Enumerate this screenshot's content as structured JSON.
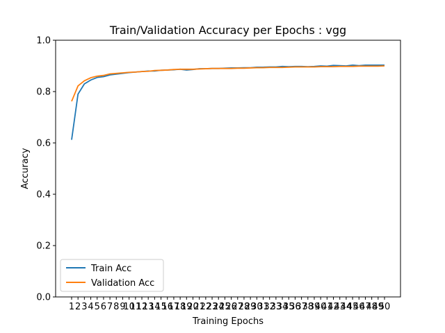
{
  "chart_data": {
    "type": "line",
    "title": "Train/Validation Accuracy per Epochs : vgg",
    "xlabel": "Training Epochs",
    "ylabel": "Accuracy",
    "ylim": [
      0,
      1.0
    ],
    "yticks": [
      "0.0",
      "0.2",
      "0.4",
      "0.6",
      "0.8",
      "1.0"
    ],
    "x": [
      "1",
      "2",
      "3",
      "4",
      "5",
      "6",
      "7",
      "8",
      "9",
      "10",
      "11",
      "12",
      "13",
      "14",
      "15",
      "16",
      "17",
      "18",
      "19",
      "20",
      "21",
      "22",
      "23",
      "24",
      "25",
      "26",
      "27",
      "28",
      "29",
      "30",
      "31",
      "32",
      "33",
      "34",
      "35",
      "36",
      "37",
      "38",
      "39",
      "40",
      "41",
      "42",
      "43",
      "44",
      "45",
      "46",
      "47",
      "48",
      "49",
      "50"
    ],
    "grid": false,
    "legend_position": "lower-left",
    "series": [
      {
        "name": "Train Acc",
        "color": "#1f77b4",
        "values": [
          0.612,
          0.79,
          0.83,
          0.845,
          0.855,
          0.858,
          0.865,
          0.868,
          0.871,
          0.874,
          0.876,
          0.878,
          0.88,
          0.88,
          0.883,
          0.884,
          0.885,
          0.887,
          0.884,
          0.886,
          0.889,
          0.889,
          0.89,
          0.89,
          0.891,
          0.892,
          0.892,
          0.893,
          0.893,
          0.895,
          0.895,
          0.896,
          0.896,
          0.898,
          0.897,
          0.898,
          0.898,
          0.897,
          0.898,
          0.9,
          0.899,
          0.902,
          0.901,
          0.9,
          0.903,
          0.901,
          0.903,
          0.903,
          0.903,
          0.903
        ]
      },
      {
        "name": "Validation Acc",
        "color": "#ff7f0e",
        "values": [
          0.762,
          0.822,
          0.842,
          0.854,
          0.86,
          0.863,
          0.869,
          0.871,
          0.873,
          0.875,
          0.876,
          0.878,
          0.879,
          0.882,
          0.883,
          0.884,
          0.886,
          0.887,
          0.887,
          0.887,
          0.888,
          0.889,
          0.89,
          0.89,
          0.89,
          0.89,
          0.891,
          0.891,
          0.892,
          0.893,
          0.893,
          0.894,
          0.894,
          0.894,
          0.895,
          0.896,
          0.896,
          0.896,
          0.896,
          0.897,
          0.897,
          0.897,
          0.898,
          0.898,
          0.898,
          0.899,
          0.899,
          0.899,
          0.899,
          0.9
        ]
      }
    ]
  }
}
